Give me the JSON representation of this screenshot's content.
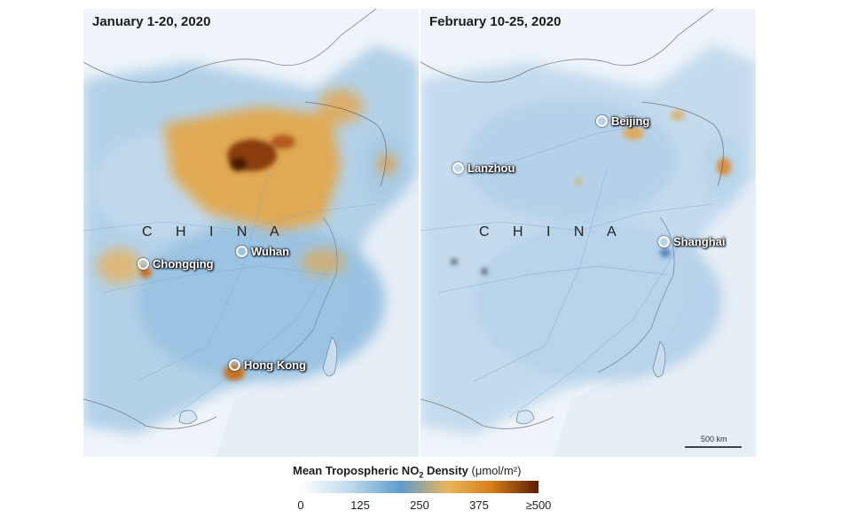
{
  "panels": [
    {
      "title": "January 1-20, 2020",
      "country_label": "C H I N A",
      "cities": [
        "Chongqing",
        "Wuhan",
        "Hong Kong"
      ]
    },
    {
      "title": "February 10-25, 2020",
      "country_label": "C H I N A",
      "cities": [
        "Beijing",
        "Lanzhou",
        "Shanghai"
      ],
      "scale_bar": "500 km"
    }
  ],
  "legend": {
    "title_before": "Mean Tropospheric NO",
    "title_sub": "2",
    "title_after": " Density",
    "unit": "(μmol/m²)",
    "ticks": [
      "0",
      "125",
      "250",
      "375",
      "≥500"
    ],
    "colors": [
      "#ffffff",
      "#b9d7ec",
      "#5f9ccd",
      "#e9b55c",
      "#d87e1a",
      "#5a1d05"
    ]
  }
}
